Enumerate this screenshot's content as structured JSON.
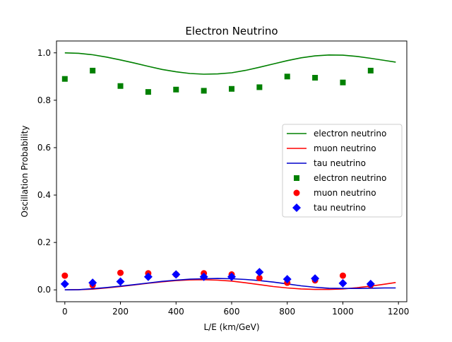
{
  "chart_data": {
    "type": "line",
    "title": "Electron Neutrino",
    "xlabel": "L/E (km/GeV)",
    "ylabel": "Oscillation Probability",
    "xlim": [
      -30,
      1230
    ],
    "ylim": [
      -0.05,
      1.05
    ],
    "xticks": [
      0,
      200,
      400,
      600,
      800,
      1000,
      1200
    ],
    "yticks": [
      0.0,
      0.2,
      0.4,
      0.6,
      0.8,
      1.0
    ],
    "grid": false,
    "legend_position": "center-right",
    "line_series": [
      {
        "name": "electron neutrino",
        "color": "#008000",
        "x": [
          0,
          50,
          100,
          150,
          200,
          250,
          300,
          350,
          400,
          450,
          500,
          550,
          600,
          650,
          700,
          750,
          800,
          850,
          900,
          950,
          1000,
          1050,
          1100,
          1150,
          1190
        ],
        "y": [
          1.0,
          0.998,
          0.992,
          0.982,
          0.97,
          0.957,
          0.943,
          0.93,
          0.92,
          0.913,
          0.91,
          0.911,
          0.916,
          0.926,
          0.939,
          0.953,
          0.967,
          0.979,
          0.987,
          0.991,
          0.99,
          0.985,
          0.977,
          0.968,
          0.961
        ]
      },
      {
        "name": "muon neutrino",
        "color": "#ff0000",
        "x": [
          0,
          50,
          100,
          150,
          200,
          250,
          300,
          350,
          400,
          450,
          500,
          550,
          600,
          650,
          700,
          750,
          800,
          850,
          900,
          950,
          1000,
          1050,
          1100,
          1150,
          1190
        ],
        "y": [
          0.0,
          0.001,
          0.003,
          0.008,
          0.014,
          0.021,
          0.028,
          0.034,
          0.039,
          0.042,
          0.043,
          0.041,
          0.037,
          0.03,
          0.022,
          0.014,
          0.008,
          0.004,
          0.002,
          0.002,
          0.004,
          0.009,
          0.016,
          0.024,
          0.031
        ]
      },
      {
        "name": "tau neutrino",
        "color": "#0000cc",
        "x": [
          0,
          50,
          100,
          150,
          200,
          250,
          300,
          350,
          400,
          450,
          500,
          550,
          600,
          650,
          700,
          750,
          800,
          850,
          900,
          950,
          1000,
          1050,
          1100,
          1150,
          1190
        ],
        "y": [
          0.0,
          0.001,
          0.005,
          0.01,
          0.016,
          0.022,
          0.029,
          0.036,
          0.041,
          0.045,
          0.047,
          0.048,
          0.047,
          0.044,
          0.039,
          0.033,
          0.025,
          0.017,
          0.011,
          0.007,
          0.006,
          0.006,
          0.007,
          0.008,
          0.008
        ]
      }
    ],
    "scatter_series": [
      {
        "name": "electron neutrino",
        "color": "#008000",
        "marker": "square",
        "x": [
          0,
          100,
          200,
          300,
          400,
          500,
          600,
          700,
          800,
          900,
          1000,
          1100
        ],
        "y": [
          0.89,
          0.925,
          0.86,
          0.835,
          0.845,
          0.84,
          0.848,
          0.855,
          0.9,
          0.895,
          0.875,
          0.925
        ]
      },
      {
        "name": "muon neutrino",
        "color": "#ff0000",
        "marker": "circle",
        "x": [
          0,
          100,
          200,
          300,
          400,
          500,
          600,
          700,
          800,
          900,
          1000,
          1100
        ],
        "y": [
          0.06,
          0.02,
          0.072,
          0.07,
          0.065,
          0.07,
          0.065,
          0.05,
          0.03,
          0.04,
          0.06,
          0.02
        ]
      },
      {
        "name": "tau neutrino",
        "color": "#0000ff",
        "marker": "diamond",
        "x": [
          0,
          100,
          200,
          300,
          400,
          500,
          600,
          700,
          800,
          900,
          1000,
          1100
        ],
        "y": [
          0.025,
          0.03,
          0.035,
          0.055,
          0.065,
          0.055,
          0.055,
          0.075,
          0.045,
          0.048,
          0.028,
          0.025
        ]
      }
    ],
    "legend_entries": [
      "electron neutrino",
      "muon neutrino",
      "tau neutrino",
      "electron neutrino",
      "muon neutrino",
      "tau neutrino"
    ]
  }
}
